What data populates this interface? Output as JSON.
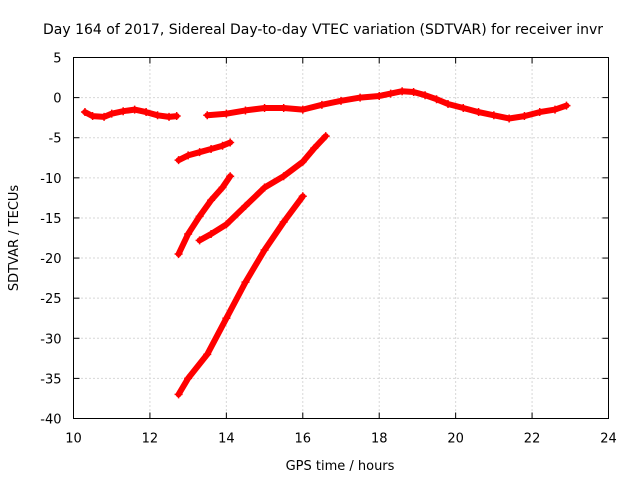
{
  "chart_data": {
    "type": "scatter",
    "title": "Day 164 of 2017, Sidereal Day-to-day VTEC variation (SDTVAR) for receiver invr",
    "xlabel": "GPS time / hours",
    "ylabel": "SDTVAR / TECUs",
    "xlim": [
      10,
      24
    ],
    "ylim": [
      -40,
      5
    ],
    "x_ticks": [
      "10",
      "12",
      "14",
      "16",
      "18",
      "20",
      "22",
      "24"
    ],
    "y_ticks": [
      "5",
      "0",
      "-5",
      "-10",
      "-15",
      "-20",
      "-25",
      "-30",
      "-35",
      "-40"
    ],
    "grid": true,
    "legend": "none",
    "colors": {
      "series": "#ff0000",
      "grid": "#b0b0b0",
      "axis": "#000000"
    },
    "series": [
      {
        "x": [
          10.3,
          10.5,
          10.8,
          11.0,
          11.3,
          11.6,
          11.9,
          12.2,
          12.5,
          12.7
        ],
        "y": [
          -1.8,
          -2.3,
          -2.4,
          -2.0,
          -1.7,
          -1.5,
          -1.8,
          -2.2,
          -2.4,
          -2.3
        ]
      },
      {
        "x": [
          13.5,
          14.0,
          14.5,
          15.0,
          15.5,
          16.0,
          16.5,
          17.0,
          17.5,
          18.0,
          18.3,
          18.6,
          18.9,
          19.2,
          19.5,
          19.8,
          20.2,
          20.6,
          21.0,
          21.4,
          21.8,
          22.2,
          22.6,
          22.9
        ],
        "y": [
          -2.2,
          -2.0,
          -1.6,
          -1.3,
          -1.3,
          -1.5,
          -0.9,
          -0.4,
          0.0,
          0.2,
          0.5,
          0.8,
          0.7,
          0.3,
          -0.2,
          -0.8,
          -1.3,
          -1.8,
          -2.2,
          -2.6,
          -2.3,
          -1.8,
          -1.5,
          -1.0
        ]
      },
      {
        "x": [
          12.75,
          13.0,
          13.3,
          13.6,
          13.9,
          14.1
        ],
        "y": [
          -7.8,
          -7.2,
          -6.8,
          -6.4,
          -6.0,
          -5.6
        ]
      },
      {
        "x": [
          12.75,
          13.0,
          13.3,
          13.6,
          13.9,
          14.1
        ],
        "y": [
          -19.5,
          -17.0,
          -14.8,
          -12.8,
          -11.2,
          -9.8
        ]
      },
      {
        "x": [
          13.3,
          13.6,
          14.0,
          14.5,
          15.0,
          15.5,
          16.0,
          16.3,
          16.6
        ],
        "y": [
          -17.8,
          -17.0,
          -15.8,
          -13.5,
          -11.2,
          -9.8,
          -8.0,
          -6.3,
          -4.8
        ]
      },
      {
        "x": [
          12.75,
          13.0,
          13.5,
          14.0,
          14.5,
          15.0,
          15.5,
          16.0
        ],
        "y": [
          -37.0,
          -35.0,
          -32.0,
          -27.5,
          -23.0,
          -19.0,
          -15.5,
          -12.3
        ]
      }
    ]
  }
}
